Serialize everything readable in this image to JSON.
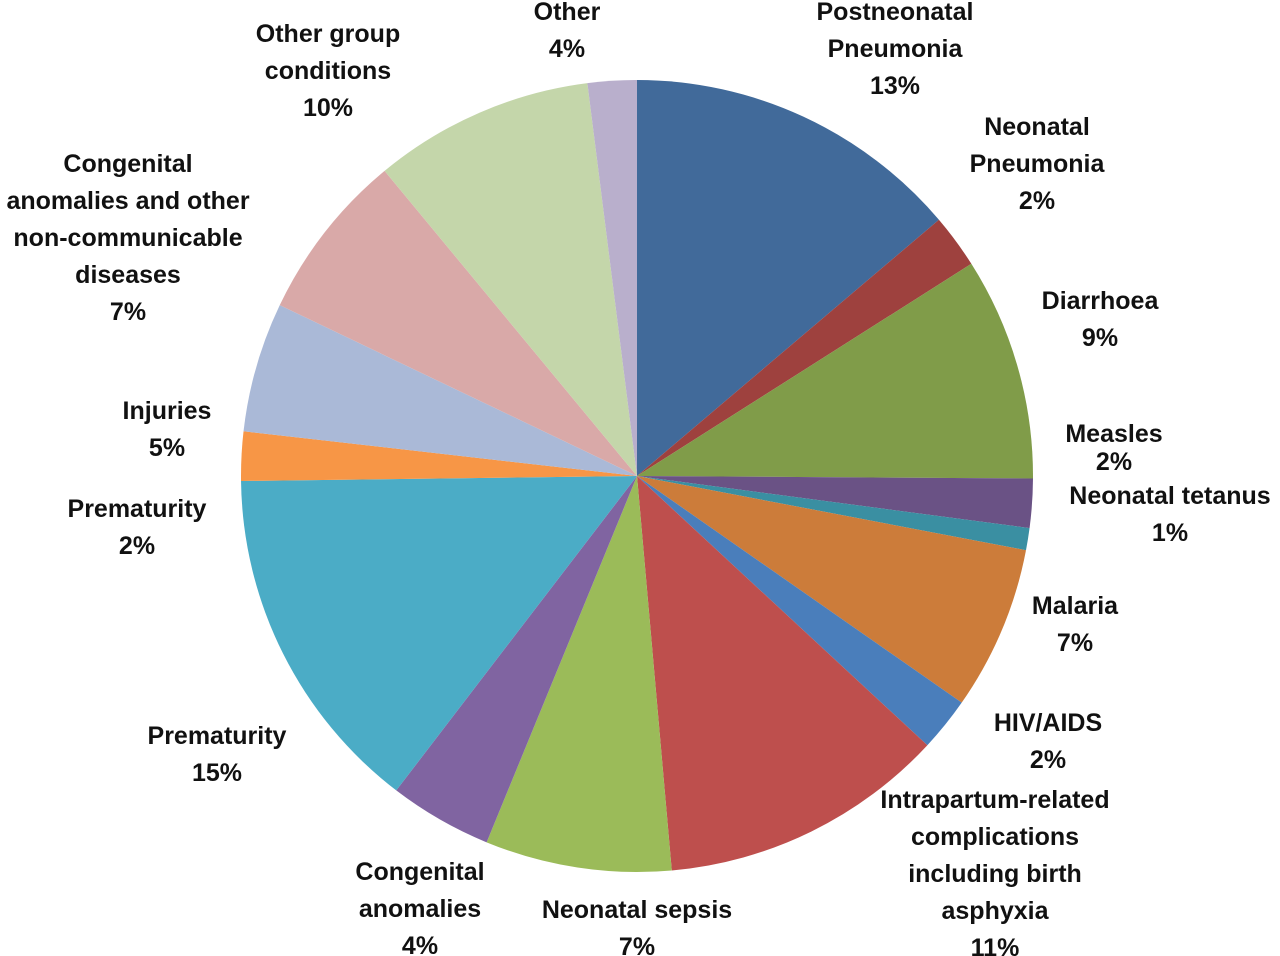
{
  "chart_data": {
    "type": "pie",
    "title": "",
    "slices": [
      {
        "label": "Postneonatal Pneumonia",
        "value_label": "13%",
        "value": 13,
        "color": "#416A9A"
      },
      {
        "label": "Neonatal Pneumonia",
        "value_label": "2%",
        "value": 2,
        "color": "#9E413E"
      },
      {
        "label": "Diarrhoea",
        "value_label": "9%",
        "value": 9,
        "color": "#809C49"
      },
      {
        "label": "Measles",
        "value_label": "2%",
        "value": 2,
        "color": "#6A5285"
      },
      {
        "label": "Neonatal tetanus",
        "value_label": "1%",
        "value": 1,
        "color": "#3A8FA2"
      },
      {
        "label": "Malaria",
        "value_label": "7%",
        "value": 7,
        "color": "#CC7C3A"
      },
      {
        "label": "HIV/AIDS",
        "value_label": "2%",
        "value": 2,
        "color": "#4A7EBB"
      },
      {
        "label": "Intrapartum-related complications including birth asphyxia",
        "value_label": "11%",
        "value": 11,
        "color": "#BE4F4D"
      },
      {
        "label": "Neonatal sepsis",
        "value_label": "7%",
        "value": 7,
        "color": "#9BBB59"
      },
      {
        "label": "Congenital anomalies",
        "value_label": "4%",
        "value": 4,
        "color": "#8064A1"
      },
      {
        "label": "Prematurity",
        "value_label": "15%",
        "value": 15,
        "color": "#4BACC6"
      },
      {
        "label": "Prematurity",
        "value_label": "2%",
        "value": 2,
        "color": "#F79646"
      },
      {
        "label": "Injuries",
        "value_label": "5%",
        "value": 5,
        "color": "#AAB9D7"
      },
      {
        "label": "Congenital anomalies and other non-communicable diseases",
        "value_label": "7%",
        "value": 7,
        "color": "#D9A9A8"
      },
      {
        "label": "Other group conditions",
        "value_label": "10%",
        "value": 10,
        "color": "#C4D6AA"
      },
      {
        "label": "Other",
        "value_label": "4%",
        "value": 4,
        "color": "#B9AFCC"
      }
    ],
    "legend": "none"
  },
  "labels": [
    {
      "lines": [
        "Postneonatal",
        "Pneumonia",
        "13%"
      ]
    },
    {
      "lines": [
        "Neonatal",
        "Pneumonia",
        "2%"
      ]
    },
    {
      "lines": [
        "Diarrhoea",
        "9%"
      ]
    },
    {
      "lines": [
        "Measles",
        "2%"
      ]
    },
    {
      "lines": [
        "Neonatal tetanus",
        "1%"
      ]
    },
    {
      "lines": [
        "Malaria",
        "7%"
      ]
    },
    {
      "lines": [
        "HIV/AIDS",
        "2%"
      ]
    },
    {
      "lines": [
        "Intrapartum-related",
        "complications",
        "including birth",
        "asphyxia",
        "11%"
      ]
    },
    {
      "lines": [
        "Neonatal sepsis",
        "7%"
      ]
    },
    {
      "lines": [
        "Congenital",
        "anomalies",
        "4%"
      ]
    },
    {
      "lines": [
        "Prematurity",
        "15%"
      ]
    },
    {
      "lines": [
        "Prematurity",
        "2%"
      ]
    },
    {
      "lines": [
        "Injuries",
        "5%"
      ]
    },
    {
      "lines": [
        "Congenital",
        "anomalies and other",
        "non-communicable",
        "diseases",
        "7%"
      ]
    },
    {
      "lines": [
        "Other group",
        "conditions",
        "10%"
      ]
    },
    {
      "lines": [
        "Other",
        "4%"
      ]
    }
  ]
}
